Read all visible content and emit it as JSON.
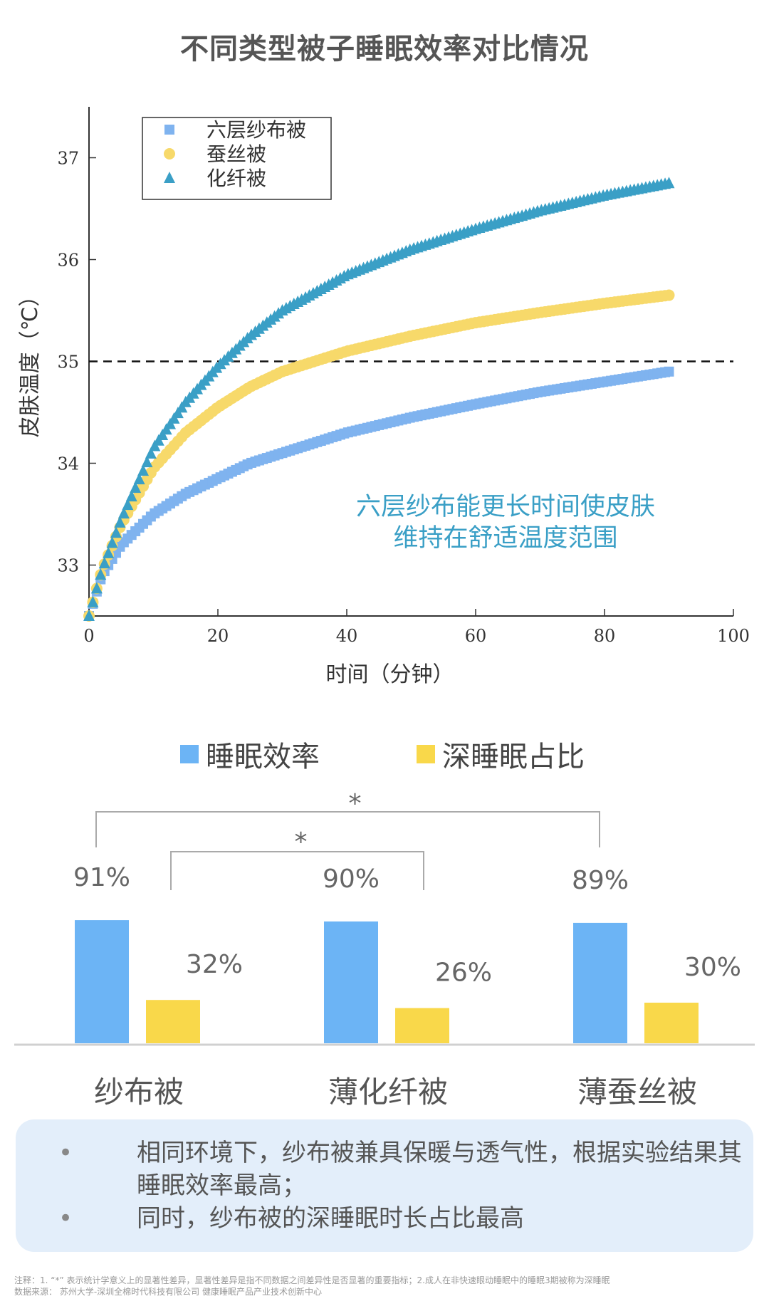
{
  "title": "不同类型被子睡眠效率对比情况",
  "chart_data": [
    {
      "type": "line",
      "xlabel": "时间（分钟）",
      "ylabel": "皮肤温度（℃）",
      "xlim": [
        0,
        100
      ],
      "ylim": [
        32.5,
        37.5
      ],
      "xticks": [
        0,
        20,
        40,
        60,
        80,
        100
      ],
      "yticks": [
        33,
        34,
        35,
        36,
        37
      ],
      "reference_line": {
        "y": 35,
        "style": "dashed"
      },
      "legend_position": "top-left",
      "series": [
        {
          "name": "六层纱布被",
          "marker": "square",
          "color": "#7fb3ef",
          "x": [
            0,
            2,
            5,
            10,
            15,
            20,
            25,
            30,
            40,
            50,
            60,
            70,
            80,
            90
          ],
          "y": [
            32.5,
            32.9,
            33.2,
            33.5,
            33.7,
            33.85,
            34.0,
            34.1,
            34.3,
            34.45,
            34.58,
            34.7,
            34.8,
            34.9
          ]
        },
        {
          "name": "蚕丝被",
          "marker": "circle",
          "color": "#f7d96a",
          "x": [
            0,
            2,
            5,
            10,
            15,
            20,
            25,
            30,
            40,
            50,
            60,
            70,
            80,
            90
          ],
          "y": [
            32.5,
            32.95,
            33.4,
            33.95,
            34.3,
            34.55,
            34.75,
            34.9,
            35.1,
            35.25,
            35.38,
            35.48,
            35.57,
            35.65
          ]
        },
        {
          "name": "化纤被",
          "marker": "triangle",
          "color": "#3a9fc6",
          "x": [
            0,
            2,
            5,
            10,
            15,
            20,
            25,
            30,
            40,
            50,
            60,
            70,
            80,
            90
          ],
          "y": [
            32.5,
            32.95,
            33.45,
            34.15,
            34.6,
            34.95,
            35.25,
            35.5,
            35.85,
            36.1,
            36.3,
            36.48,
            36.63,
            36.75
          ]
        }
      ]
    },
    {
      "type": "bar",
      "categories": [
        "纱布被",
        "薄化纤被",
        "薄蚕丝被"
      ],
      "series": [
        {
          "name": "睡眠效率",
          "color": "#6cb4f5",
          "values": [
            91,
            90,
            89
          ],
          "labels": [
            "91%",
            "90%",
            "89%"
          ]
        },
        {
          "name": "深睡眠占比",
          "color": "#f9d84a",
          "values": [
            32,
            26,
            30
          ],
          "labels": [
            "32%",
            "26%",
            "30%"
          ]
        }
      ],
      "significance_marks": [
        "*",
        "*"
      ],
      "legend_position": "top-center"
    }
  ],
  "annotation": {
    "line1": "六层纱布能更长时间使皮肤",
    "line2": "维持在舒适温度范围"
  },
  "notes": {
    "bullet": "•",
    "items": [
      "相同环境下，纱布被兼具保暖与透气性，根据实验结果其睡眠效率最高；",
      "同时，纱布被的深睡眠时长占比最高"
    ]
  },
  "footnote": {
    "line1": "注释：1. “*” 表示统计学意义上的显著性差异，显著性差异是指不同数据之间差异性是否显著的重要指标；2.成人在非快速眼动睡眠中的睡眠3期被称为深睡眠",
    "line2": "数据来源： 苏州大学-深圳全棉时代科技有限公司 健康睡眠产品产业技术创新中心"
  }
}
